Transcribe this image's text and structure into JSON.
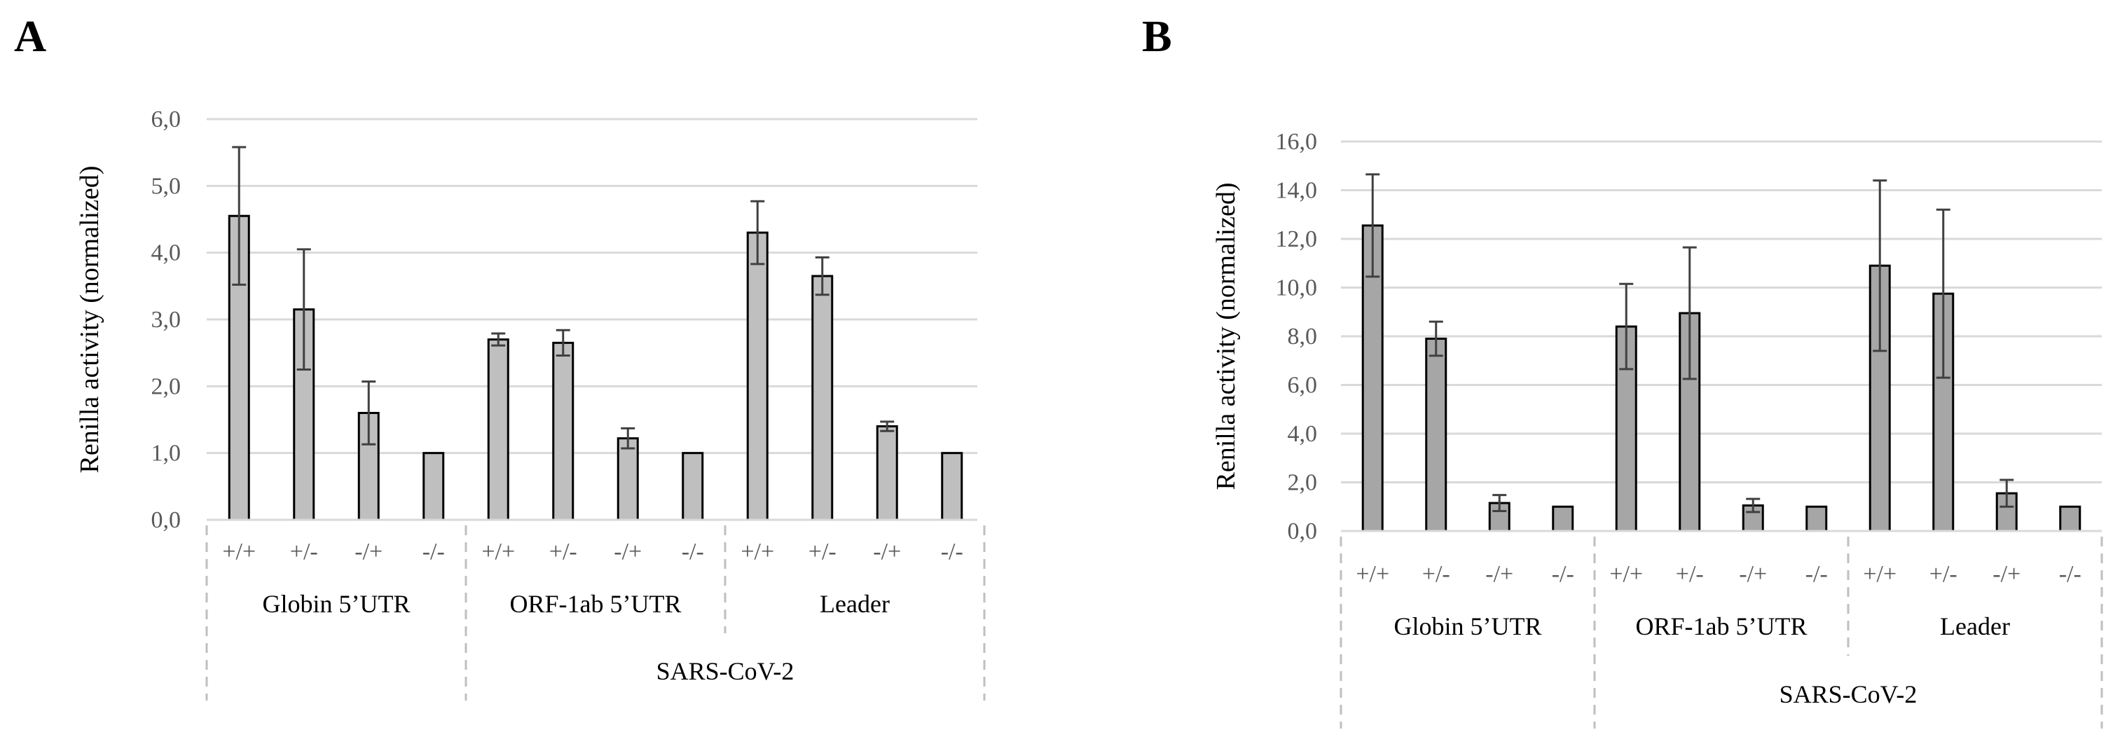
{
  "chart_data": [
    {
      "panel": "A",
      "type": "bar",
      "ylabel": "Renilla activity (normalized)",
      "ylim": [
        0,
        6
      ],
      "ytick_step": 1,
      "ytick_labels": [
        "0,0",
        "1,0",
        "2,0",
        "3,0",
        "4,0",
        "5,0",
        "6,0"
      ],
      "grid": true,
      "categories": [
        "+/+",
        "+/-",
        "-/+",
        "-/-",
        "+/+",
        "+/-",
        "-/+",
        "-/-",
        "+/+",
        "+/-",
        "-/+",
        "-/-"
      ],
      "values": [
        4.55,
        3.15,
        1.6,
        1.0,
        2.7,
        2.65,
        1.22,
        1.0,
        4.3,
        3.65,
        1.4,
        1.0
      ],
      "errors": [
        1.03,
        0.9,
        0.47,
        0.0,
        0.09,
        0.19,
        0.15,
        0.0,
        0.47,
        0.28,
        0.07,
        0.0
      ],
      "groups": [
        {
          "label": "Globin 5’UTR",
          "count": 4
        },
        {
          "label": "ORF-1ab 5’UTR",
          "count": 4
        },
        {
          "label": "Leader",
          "count": 4
        }
      ],
      "supergroup": {
        "label": "SARS-CoV-2",
        "start": 4,
        "count": 8
      },
      "bar_color": "#bfbfbf"
    },
    {
      "panel": "B",
      "type": "bar",
      "ylabel": "Renilla activity (normalized)",
      "ylim": [
        0,
        16
      ],
      "ytick_step": 2,
      "ytick_labels": [
        "0,0",
        "2,0",
        "4,0",
        "6,0",
        "8,0",
        "10,0",
        "12,0",
        "14,0",
        "16,0"
      ],
      "grid": true,
      "categories": [
        "+/+",
        "+/-",
        "-/+",
        "-/-",
        "+/+",
        "+/-",
        "-/+",
        "-/-",
        "+/+",
        "+/-",
        "-/+",
        "-/-"
      ],
      "values": [
        12.55,
        7.9,
        1.15,
        1.0,
        8.4,
        8.95,
        1.05,
        1.0,
        10.9,
        9.75,
        1.55,
        1.0
      ],
      "errors": [
        2.1,
        0.7,
        0.33,
        0.0,
        1.75,
        2.7,
        0.27,
        0.0,
        3.5,
        3.45,
        0.55,
        0.0
      ],
      "groups": [
        {
          "label": "Globin 5’UTR",
          "count": 4
        },
        {
          "label": "ORF-1ab 5’UTR",
          "count": 4
        },
        {
          "label": "Leader",
          "count": 4
        }
      ],
      "supergroup": {
        "label": "SARS-CoV-2",
        "start": 4,
        "count": 8
      },
      "bar_color": "#a6a6a6"
    }
  ]
}
